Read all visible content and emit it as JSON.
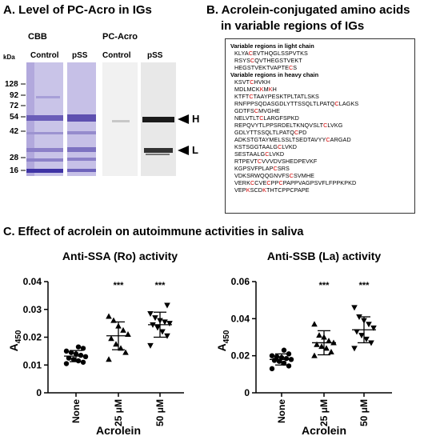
{
  "panelA": {
    "title": "A. Level of PC-Acro in IGs",
    "cbb": "CBB",
    "pcacro": "PC-Acro",
    "kda": "kDa",
    "lanes": [
      "Control",
      "pSS",
      "Control",
      "pSS"
    ],
    "markers": [
      "128",
      "92",
      "72",
      "54",
      "42",
      "28",
      "16"
    ],
    "arrows": [
      "H",
      "L"
    ]
  },
  "panelB": {
    "title_line1": "B. Acrolein-conjugated amino acids",
    "title_line2": "in variable regions of IGs",
    "light_header": "Variable regions in light chain",
    "light": [
      [
        "KLYA",
        "C",
        "EVTHQGLSSPVTKS"
      ],
      [
        "RSYS",
        "C",
        "QVTHEGSTVEKT"
      ],
      [
        "HEGSTVEKTVAPTE",
        "C",
        "S"
      ]
    ],
    "heavy_header": "Variable regions in heavy chain",
    "heavy": [
      [
        "KSVT",
        "C",
        "HVKH"
      ],
      [
        "MDLMCK",
        "K",
        "M",
        "K",
        "H"
      ],
      [
        "KTFT",
        "C",
        "TAAYPESKTPLTATLSKS"
      ],
      [
        "RNFPPSQDASGDLYTTSSQLTLPATQ",
        "C",
        "LAGKS"
      ],
      [
        "GDTFS",
        "C",
        "MVGHE"
      ],
      [
        "NELVTLT",
        "C",
        "LARGFSPKD"
      ],
      [
        "REPQVYTLPPSRDELTKNQVSLT",
        "C",
        "LVKG"
      ],
      [
        "GDLYTTSSQLTLPATQ",
        "C",
        "PD"
      ],
      [
        "ADKSTGTAYMELSSLTSEDTAVYY",
        "C",
        "ARGAD"
      ],
      [
        "KSTSGGTAALG",
        "C",
        "LVKD"
      ],
      [
        "SESTAALG",
        "C",
        "LVKD"
      ],
      [
        "RTPEVT",
        "C",
        "VVVDVSHEDPEVKF"
      ],
      [
        "KGPSVFPLAP",
        "C",
        "SRS"
      ],
      [
        "VDKSRWQQGNVFS",
        "C",
        "SVMHE"
      ],
      [
        "VERK",
        "C",
        "CVE",
        "C",
        "PP",
        "C",
        "PAPPVAGPSVFLFPPKPKD"
      ],
      [
        "VEP",
        "K",
        "SCD",
        "K",
        "THTCPPCPAPE"
      ]
    ]
  },
  "panelC": {
    "title": "C. Effect of acrolein on autoimmune activities in saliva",
    "plots": [
      {
        "title": "Anti-SSA (Ro) activity",
        "ylabel": "A450",
        "ylabel_main": "A",
        "ylabel_sub": "450",
        "xlabel": "Acrolein",
        "ylim": [
          0,
          0.04
        ],
        "yticks": [
          "0",
          "0.01",
          "0.02",
          "0.03",
          "0.04"
        ],
        "categories": [
          "None",
          "25 μM",
          "50 μM"
        ],
        "sig": [
          "",
          "***",
          "***"
        ],
        "mean": [
          0.0132,
          0.0205,
          0.0245
        ],
        "sd": [
          0.002,
          0.005,
          0.0045
        ],
        "points": [
          [
            0.0105,
            0.011,
            0.0115,
            0.012,
            0.0125,
            0.013,
            0.0135,
            0.014,
            0.0145,
            0.015,
            0.016,
            0.0165
          ],
          [
            0.012,
            0.0145,
            0.016,
            0.0175,
            0.0195,
            0.021,
            0.0225,
            0.024,
            0.026,
            0.0275
          ],
          [
            0.017,
            0.0205,
            0.022,
            0.0235,
            0.0245,
            0.025,
            0.0255,
            0.026,
            0.027,
            0.0285,
            0.0315
          ]
        ]
      },
      {
        "title": "Anti-SSB (La) activity",
        "ylabel": "A450",
        "ylabel_main": "A",
        "ylabel_sub": "450",
        "xlabel": "Acrolein",
        "ylim": [
          0,
          0.06
        ],
        "yticks": [
          "0",
          "0.02",
          "0.04",
          "0.06"
        ],
        "categories": [
          "None",
          "25 μM",
          "50 μM"
        ],
        "sig": [
          "",
          "***",
          "***"
        ],
        "mean": [
          0.018,
          0.027,
          0.034
        ],
        "sd": [
          0.003,
          0.0065,
          0.007
        ],
        "points": [
          [
            0.013,
            0.0145,
            0.016,
            0.017,
            0.0175,
            0.018,
            0.0185,
            0.019,
            0.0195,
            0.02,
            0.021,
            0.023
          ],
          [
            0.02,
            0.022,
            0.024,
            0.025,
            0.026,
            0.027,
            0.028,
            0.03,
            0.031,
            0.037
          ],
          [
            0.024,
            0.027,
            0.029,
            0.031,
            0.033,
            0.035,
            0.037,
            0.039,
            0.041,
            0.046
          ]
        ]
      }
    ]
  }
}
